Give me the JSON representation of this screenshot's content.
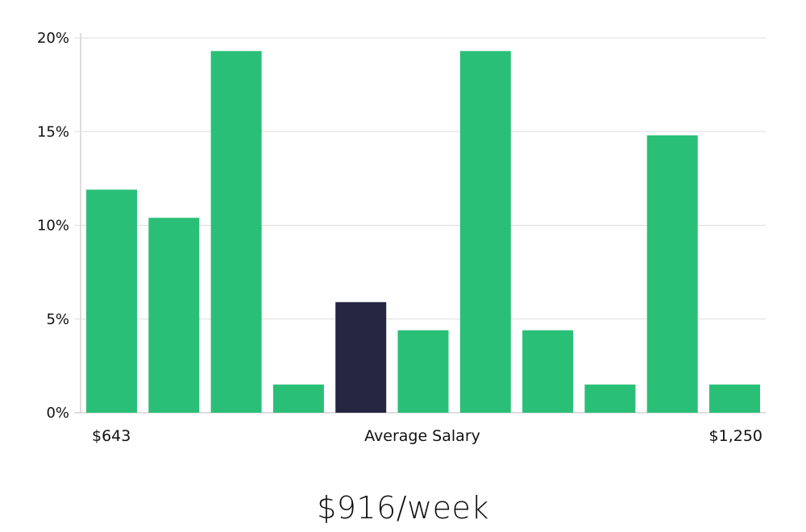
{
  "chart_data": {
    "type": "bar",
    "ylim": [
      0,
      20
    ],
    "yticks": [
      "0%",
      "5%",
      "10%",
      "15%",
      "20%"
    ],
    "ytick_values": [
      0,
      5,
      10,
      15,
      20
    ],
    "grid": true,
    "values": [
      11.9,
      10.4,
      19.3,
      1.5,
      5.9,
      4.4,
      19.3,
      4.4,
      1.5,
      14.8,
      1.5
    ],
    "highlight_index": 4,
    "colors": {
      "bar": "#2abf77",
      "highlight": "#262542",
      "grid": "#dddddd",
      "axis": "#bbbbbb"
    },
    "x_min_label": "$643",
    "x_center_label": "Average Salary",
    "x_max_label": "$1,250"
  },
  "headline": "$916/week"
}
